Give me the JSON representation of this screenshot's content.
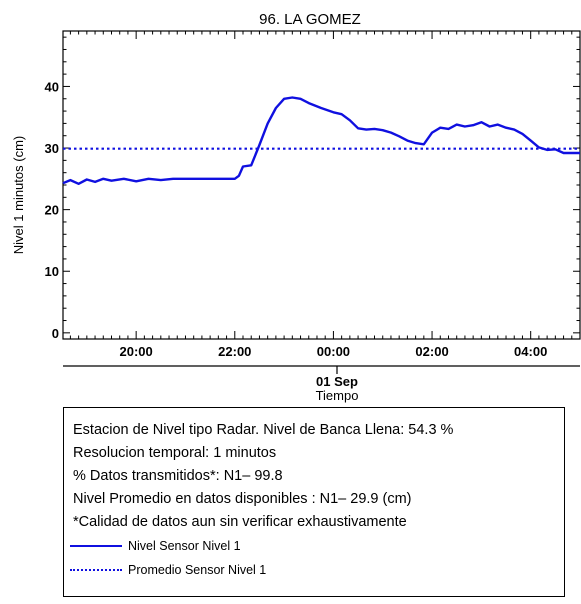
{
  "chart_data": {
    "type": "line",
    "title": "96. LA GOMEZ",
    "ylabel": "Nivel 1 minutos (cm)",
    "xlabel": "Tiempo",
    "date_label": "01 Sep",
    "ylim": [
      -1,
      49
    ],
    "xlim": [
      "18:31",
      "05:00"
    ],
    "x_ticks": [
      "20:00",
      "22:00",
      "00:00",
      "02:00",
      "04:00"
    ],
    "y_ticks": [
      "0",
      "10",
      "20",
      "30",
      "40"
    ],
    "grid": false,
    "series": [
      {
        "name": "Nivel Sensor Nivel 1",
        "color": "#1010e0",
        "style": "solid",
        "x": [
          "18:31",
          "18:40",
          "18:50",
          "19:00",
          "19:10",
          "19:20",
          "19:30",
          "19:45",
          "20:00",
          "20:15",
          "20:30",
          "20:45",
          "21:00",
          "21:15",
          "21:30",
          "21:45",
          "22:00",
          "22:05",
          "22:10",
          "22:20",
          "22:30",
          "22:40",
          "22:50",
          "23:00",
          "23:10",
          "23:20",
          "23:30",
          "23:45",
          "00:00",
          "00:10",
          "00:20",
          "00:30",
          "00:40",
          "00:50",
          "01:00",
          "01:10",
          "01:20",
          "01:30",
          "01:40",
          "01:50",
          "02:00",
          "02:10",
          "02:20",
          "02:30",
          "02:40",
          "02:50",
          "03:00",
          "03:10",
          "03:20",
          "03:30",
          "03:40",
          "03:50",
          "04:00",
          "04:10",
          "04:20",
          "04:30",
          "04:40",
          "04:50",
          "05:00"
        ],
        "values": [
          24.3,
          24.8,
          24.2,
          24.9,
          24.5,
          25.0,
          24.7,
          25.0,
          24.6,
          25.0,
          24.8,
          25.0,
          25.0,
          25.0,
          25.0,
          25.0,
          25.0,
          25.5,
          27.0,
          27.2,
          30.5,
          34.0,
          36.5,
          38.0,
          38.2,
          38.0,
          37.3,
          36.5,
          35.8,
          35.5,
          34.5,
          33.2,
          33.0,
          33.1,
          32.9,
          32.5,
          31.9,
          31.2,
          30.8,
          30.6,
          32.5,
          33.3,
          33.1,
          33.8,
          33.5,
          33.7,
          34.2,
          33.5,
          33.8,
          33.3,
          33.0,
          32.3,
          31.2,
          30.1,
          29.7,
          29.8,
          29.2,
          29.2,
          29.2
        ]
      },
      {
        "name": "Promedio Sensor Nivel 1",
        "color": "#1010e0",
        "style": "dotted",
        "x": [
          "18:31",
          "05:00"
        ],
        "values": [
          29.9,
          29.9
        ]
      }
    ]
  },
  "info": {
    "lines": [
      "Estacion de Nivel tipo Radar. Nivel de Banca Llena: 54.3 %",
      "Resolucion temporal: 1 minutos",
      "% Datos transmitidos*: N1– 99.8",
      "Nivel Promedio en datos disponibles : N1– 29.9 (cm)",
      "*Calidad de datos aun sin verificar exhaustivamente"
    ],
    "legend": [
      {
        "label": "Nivel Sensor Nivel 1",
        "style": "solid",
        "color": "#1010e0"
      },
      {
        "label": "Promedio Sensor Nivel 1",
        "style": "dotted",
        "color": "#1010e0"
      }
    ]
  }
}
